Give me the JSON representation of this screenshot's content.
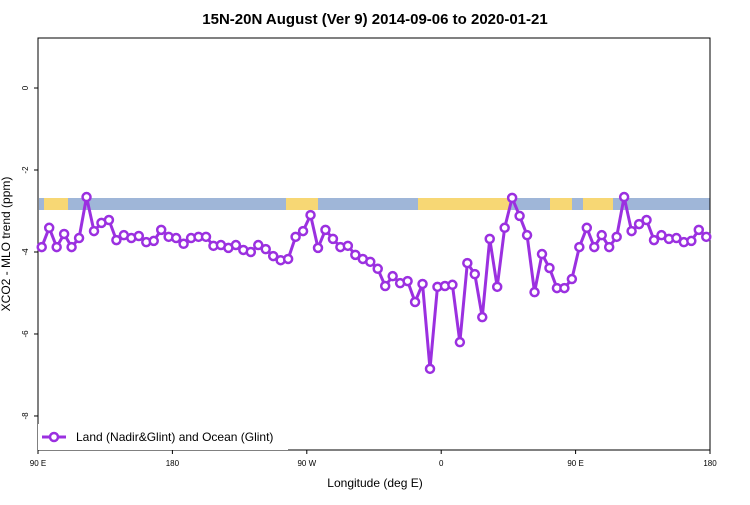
{
  "chart_data": {
    "type": "line",
    "title": "15N-20N August (Ver 9)   2014-09-06 to 2020-01-21",
    "x_label": "Longitude (deg E)",
    "y_label": "XCO2 - MLO trend (ppm)",
    "xlim": [
      90,
      540
    ],
    "ylim": [
      -8.83,
      1.22
    ],
    "xticks": [
      {
        "value": 90,
        "label": "90 E"
      },
      {
        "value": 180,
        "label": "180"
      },
      {
        "value": 270,
        "label": "90 W"
      },
      {
        "value": 360,
        "label": "0"
      },
      {
        "value": 450,
        "label": "90 E"
      },
      {
        "value": 540,
        "label": "180"
      }
    ],
    "yticks": [
      0,
      -2,
      -4,
      -6,
      -8
    ],
    "legend": "bottom-left",
    "x": [
      92.5,
      97.5,
      102.5,
      107.5,
      112.5,
      117.5,
      122.5,
      127.5,
      132.5,
      137.5,
      142.5,
      147.5,
      152.5,
      157.5,
      162.5,
      167.5,
      172.5,
      177.5,
      182.5,
      187.5,
      192.5,
      197.5,
      202.5,
      207.5,
      212.5,
      217.5,
      222.5,
      227.5,
      232.5,
      237.5,
      242.5,
      247.5,
      252.5,
      257.5,
      262.5,
      267.5,
      272.5,
      277.5,
      282.5,
      287.5,
      292.5,
      297.5,
      302.5,
      307.5,
      312.5,
      317.5,
      322.5,
      327.5,
      332.5,
      337.5,
      342.5,
      347.5,
      352.5,
      357.5,
      362.5,
      367.5,
      372.5,
      377.5,
      382.5,
      387.5,
      392.5,
      397.5,
      402.5,
      407.5,
      412.5,
      417.5,
      422.5,
      427.5,
      432.5,
      437.5,
      442.5,
      447.5,
      452.5,
      457.5,
      462.5,
      467.5,
      472.5,
      477.5,
      482.5,
      487.5,
      492.5,
      497.5,
      502.5,
      507.5,
      512.5,
      517.5,
      522.5,
      527.5,
      532.5,
      537.5
    ],
    "series": [
      {
        "name": "Land (Nadir&Glint) and Ocean (Glint)",
        "color": "#9b30e0",
        "values": [
          -3.88,
          -3.41,
          -3.88,
          -3.56,
          -3.88,
          -3.66,
          -2.66,
          -3.49,
          -3.29,
          -3.22,
          -3.71,
          -3.59,
          -3.66,
          -3.61,
          -3.76,
          -3.73,
          -3.46,
          -3.63,
          -3.66,
          -3.8,
          -3.66,
          -3.63,
          -3.63,
          -3.85,
          -3.83,
          -3.9,
          -3.83,
          -3.95,
          -4.0,
          -3.83,
          -3.93,
          -4.1,
          -4.2,
          -4.17,
          -3.63,
          -3.49,
          -3.1,
          -3.9,
          -3.46,
          -3.68,
          -3.88,
          -3.85,
          -4.07,
          -4.17,
          -4.24,
          -4.41,
          -4.83,
          -4.59,
          -4.76,
          -4.71,
          -5.22,
          -4.78,
          -6.85,
          -4.85,
          -4.83,
          -4.8,
          -6.2,
          -4.27,
          -4.54,
          -5.59,
          -3.68,
          -4.85,
          -3.41,
          -2.68,
          -3.12,
          -3.59,
          -4.98,
          -4.05,
          -4.39,
          -4.88,
          -4.88,
          -4.66,
          -3.88,
          -3.41,
          -3.88,
          -3.59,
          -3.88,
          -3.63,
          -2.66,
          -3.49,
          -3.32,
          -3.22,
          -3.71,
          -3.59,
          -3.68,
          -3.66,
          -3.76,
          -3.73,
          -3.46,
          -3.63
        ]
      }
    ]
  }
}
